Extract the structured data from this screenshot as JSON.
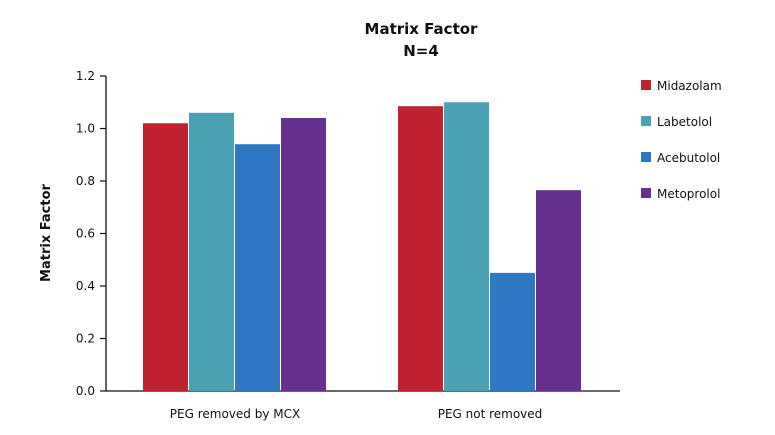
{
  "chart_data": {
    "type": "bar",
    "title": "Matrix Factor",
    "subtitle": "N=4",
    "xlabel": "",
    "ylabel": "Matrix Factor",
    "ylim": [
      0,
      1.2
    ],
    "yticks": [
      0.0,
      0.2,
      0.4,
      0.6,
      0.8,
      1.0,
      1.2
    ],
    "ytick_labels": [
      "0.0",
      "0.2",
      "0.4",
      "0.6",
      "0.8",
      "1.0",
      "1.2"
    ],
    "categories": [
      "PEG removed by MCX",
      "PEG not removed"
    ],
    "series": [
      {
        "name": "Midazolam",
        "color": "#c0232f",
        "values": [
          1.02,
          1.085
        ]
      },
      {
        "name": "Labetolol",
        "color": "#4aa1b3",
        "values": [
          1.06,
          1.1
        ]
      },
      {
        "name": "Acebutolol",
        "color": "#2d77c3",
        "values": [
          0.94,
          0.45
        ]
      },
      {
        "name": "Metoprolol",
        "color": "#673090",
        "values": [
          1.04,
          0.765
        ]
      }
    ],
    "grid": false,
    "legend_position": "top-right"
  }
}
